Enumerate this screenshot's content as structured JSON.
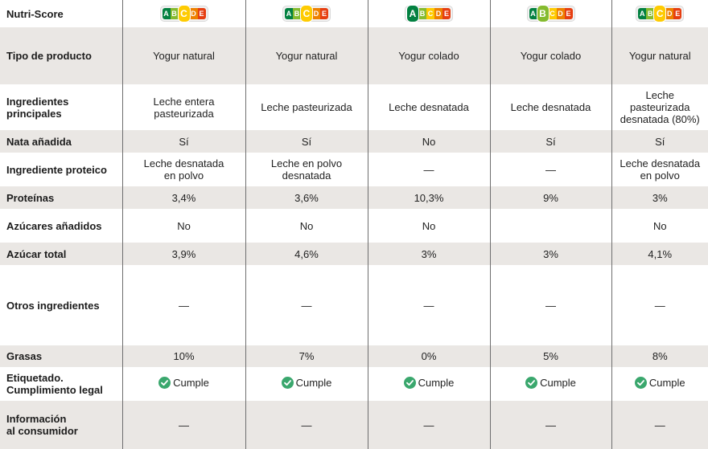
{
  "colors": {
    "row_shade": "#eae7e4",
    "divider": "#6e6e6e",
    "check_green": "#3aa76d",
    "nutri_a": "#038141",
    "nutri_b": "#85bb2f",
    "nutri_c": "#fecb02",
    "nutri_d": "#ee8100",
    "nutri_e": "#e63e11"
  },
  "nutri_score": {
    "label": "Nutri-Score",
    "letters": [
      "A",
      "B",
      "C",
      "D",
      "E"
    ],
    "values": [
      "C",
      "C",
      "A",
      "B",
      "C"
    ]
  },
  "rows": {
    "tipo": {
      "label": "Tipo de producto",
      "values": [
        "Yogur natural",
        "Yogur natural",
        "Yogur colado",
        "Yogur colado",
        "Yogur natural"
      ]
    },
    "ingredientes": {
      "label_1": "Ingredientes",
      "label_2": "principales",
      "values": [
        [
          "Leche entera",
          "pasteurizada",
          ""
        ],
        [
          "Leche pasteurizada",
          "",
          ""
        ],
        [
          "Leche desnatada",
          "",
          ""
        ],
        [
          "Leche desnatada",
          "",
          ""
        ],
        [
          "Leche",
          "pasteurizada",
          "desnatada (80%)"
        ]
      ]
    },
    "nata": {
      "label": "Nata añadida",
      "values": [
        "Sí",
        "Sí",
        "No",
        "Sí",
        "Sí"
      ]
    },
    "proteico": {
      "label": "Ingrediente proteico",
      "values": [
        [
          "Leche desnatada",
          "en polvo"
        ],
        [
          "Leche en polvo",
          "desnatada"
        ],
        [
          "—",
          ""
        ],
        [
          "—",
          ""
        ],
        [
          "Leche desnatada",
          "en polvo"
        ]
      ]
    },
    "proteinas": {
      "label": "Proteínas",
      "values": [
        "3,4%",
        "3,6%",
        "10,3%",
        "9%",
        "3%"
      ]
    },
    "azucares_anadidos": {
      "label": "Azúcares añadidos",
      "values": [
        "No",
        "No",
        "No",
        "",
        "No"
      ]
    },
    "azucar_total": {
      "label": "Azúcar total",
      "values": [
        "3,9%",
        "4,6%",
        "3%",
        "3%",
        "4,1%"
      ]
    },
    "otros": {
      "label": "Otros ingredientes",
      "values": [
        "—",
        "—",
        "—",
        "—",
        "—"
      ]
    },
    "grasas": {
      "label": "Grasas",
      "values": [
        "10%",
        "7%",
        "0%",
        "5%",
        "8%"
      ]
    },
    "etiquetado": {
      "label_1": "Etiquetado.",
      "label_2": "Cumplimiento legal",
      "values": [
        "Cumple",
        "Cumple",
        "Cumple",
        "Cumple",
        "Cumple"
      ],
      "icon": "check-circle-icon"
    },
    "informacion": {
      "label_1": "Información",
      "label_2": "al consumidor",
      "values": [
        "—",
        "—",
        "—",
        "—",
        "—"
      ]
    }
  }
}
